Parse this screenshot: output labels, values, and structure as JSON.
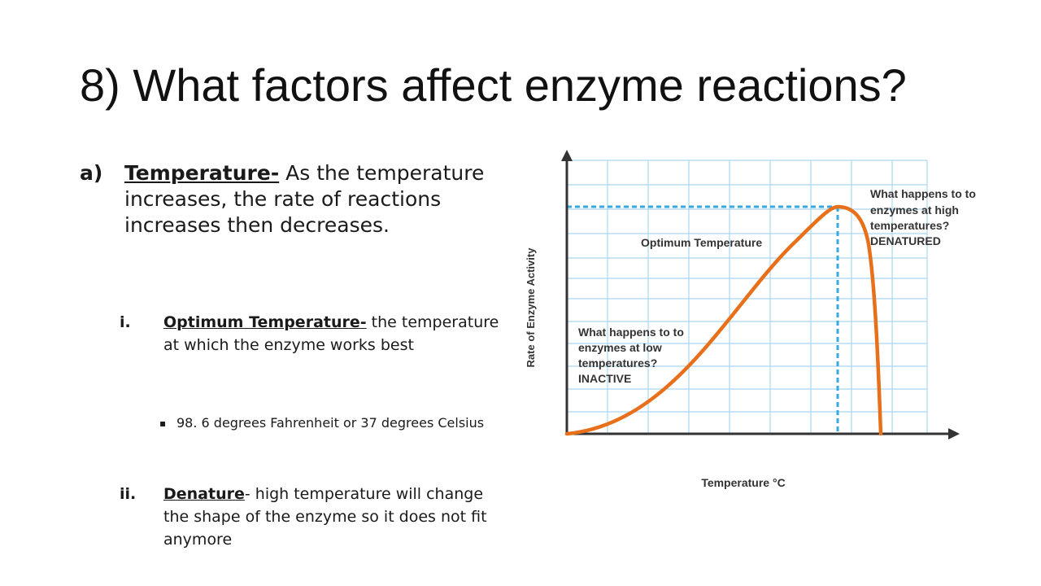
{
  "slide": {
    "title": "8)  What factors affect enzyme reactions?",
    "point_a": {
      "marker": "a)",
      "term": "Temperature-",
      "text": " As the temperature increases, the rate of reactions increases then decreases."
    },
    "point_i": {
      "marker": "i.",
      "term": "Optimum Temperature-",
      "text": " the temperature at which the enzyme works best"
    },
    "sub_bullet": {
      "marker": "▪",
      "text": "98. 6 degrees Fahrenheit or  37 degrees Celsius"
    },
    "point_ii": {
      "marker": "ii.",
      "term": "Denature",
      "text": "- high temperature will change the shape of the enzyme so it does not fit anymore"
    }
  },
  "chart_data": {
    "type": "line",
    "xlabel": "Temperature °C",
    "ylabel": "Rate of Enzyme Activity",
    "annotations": {
      "optimum": "Optimum Temperature",
      "low_q1": "What happens to to",
      "low_q2": "enzymes at low",
      "low_q3": "temperatures?",
      "low_answer": "INACTIVE",
      "high_q1": "What happens to to",
      "high_q2": "enzymes at high",
      "high_q3": "temperatures?",
      "high_answer": "DENATURED"
    },
    "colors": {
      "curve": "#e8701a",
      "grid": "#a9d8f0",
      "guide": "#39a9e0",
      "axis": "#333333"
    }
  }
}
